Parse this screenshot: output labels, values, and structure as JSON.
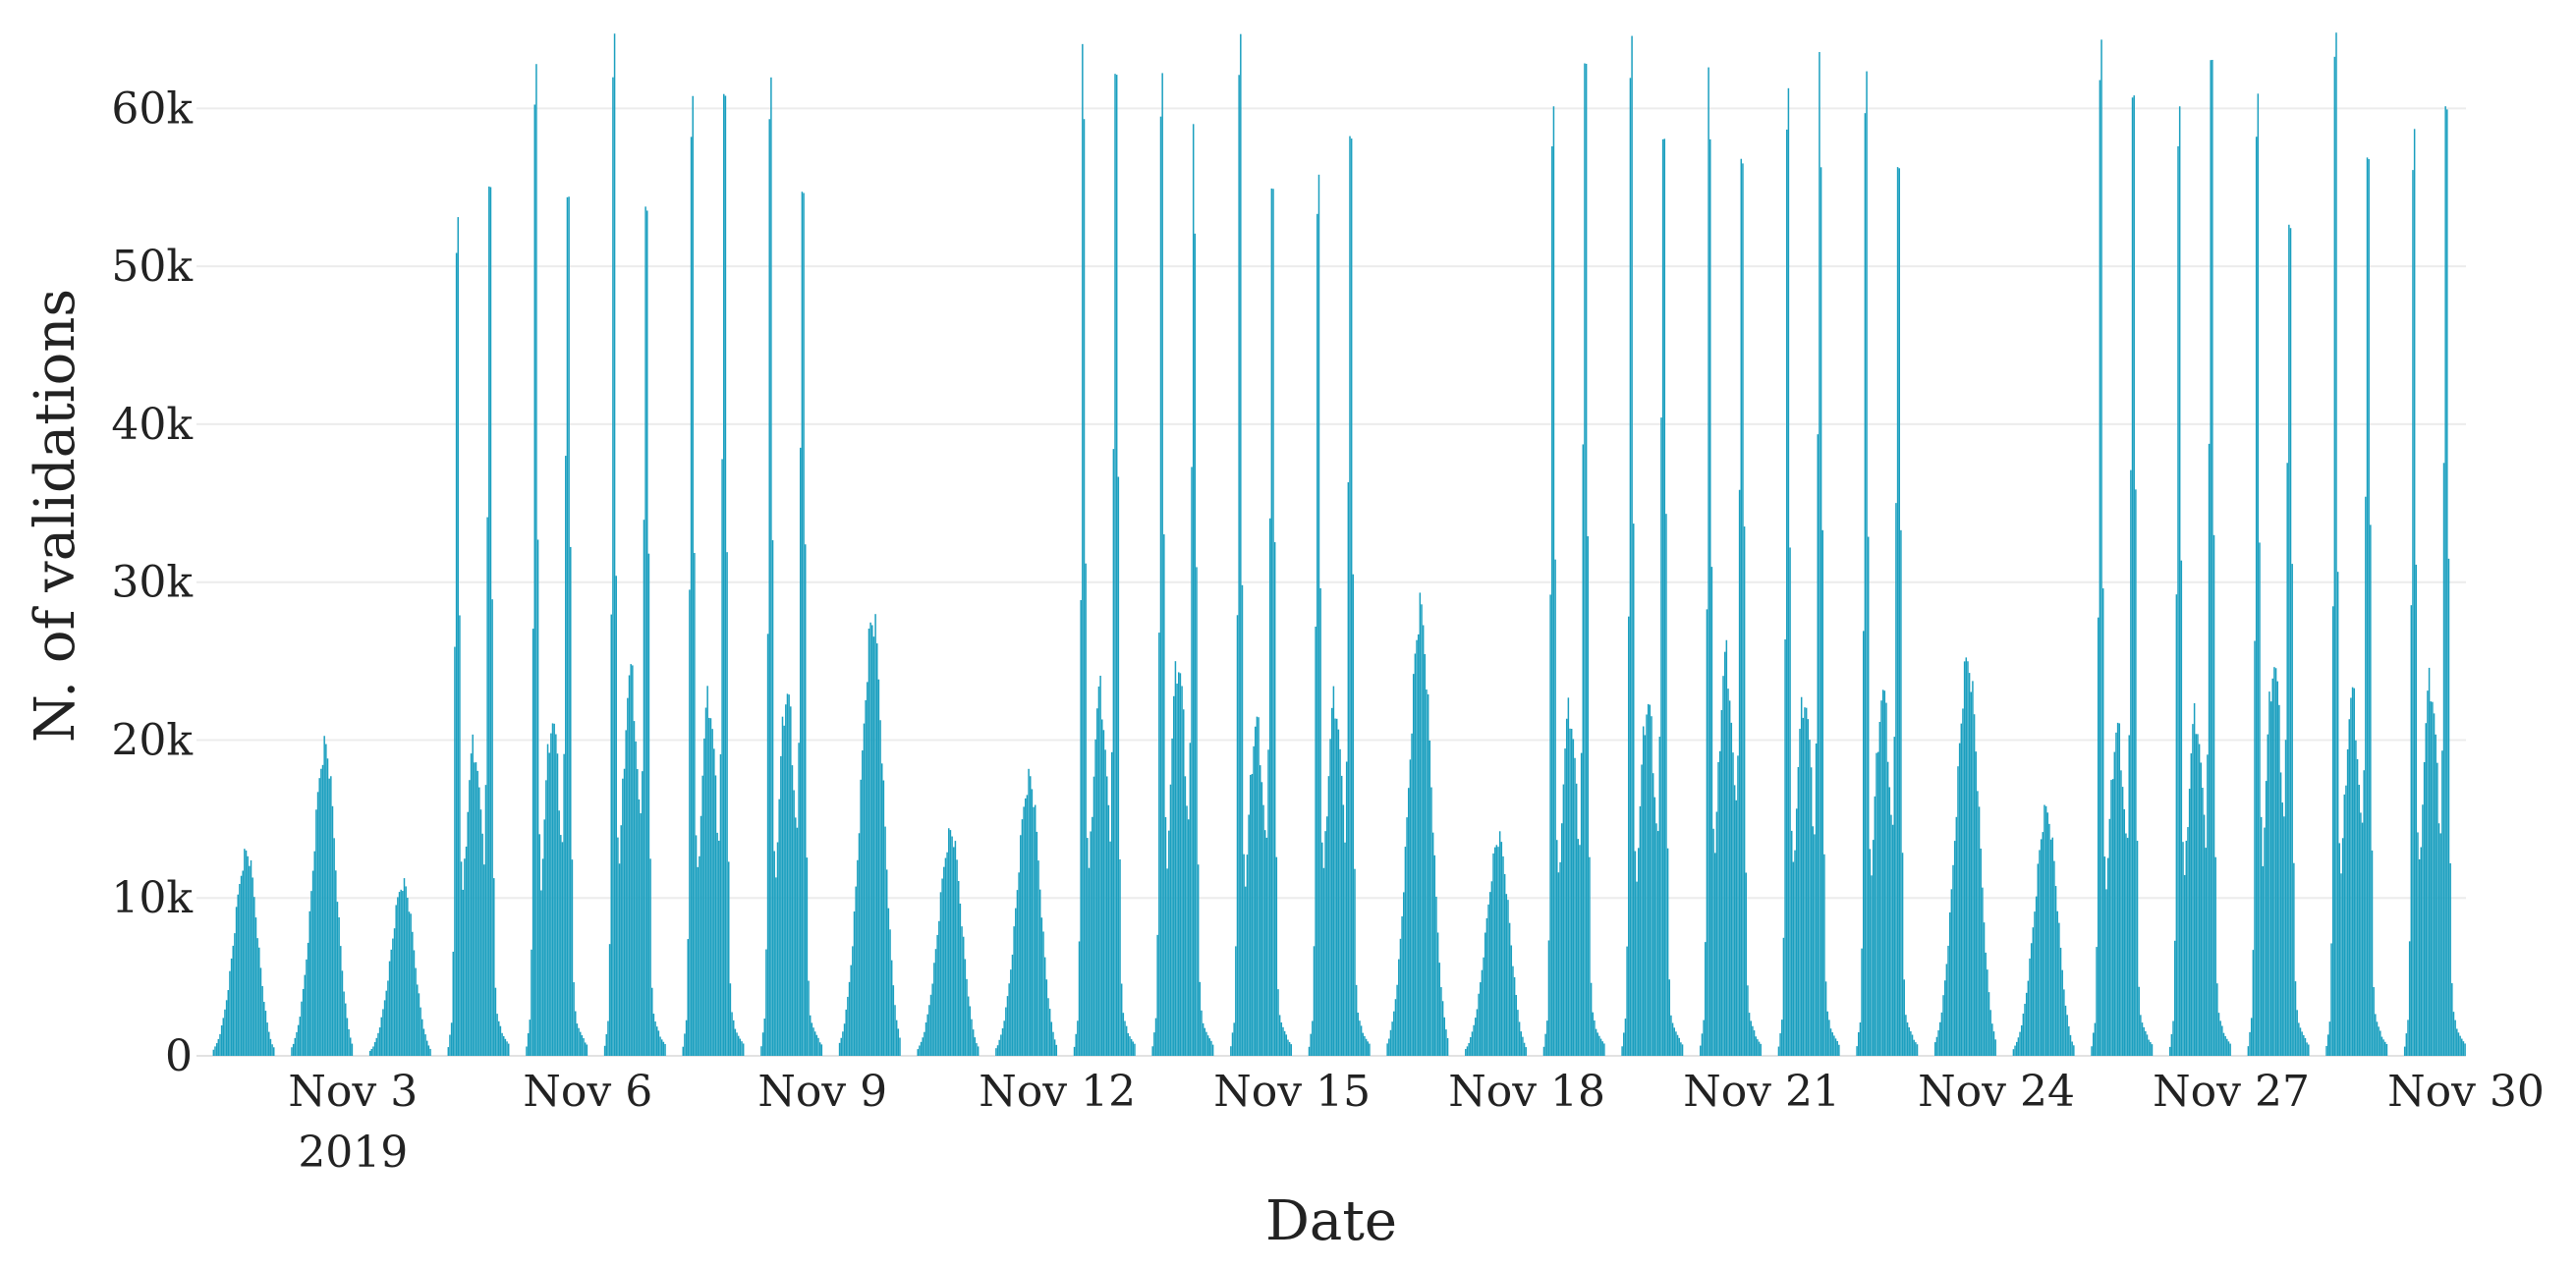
{
  "chart_data": {
    "type": "bar",
    "x_kind": "date",
    "x_range": [
      "2019-11-01",
      "2019-11-30"
    ],
    "y_range": [
      0,
      65000
    ],
    "grid": true,
    "legend": "none",
    "xlabel": "Date",
    "ylabel": "N. of validations",
    "x_ticks": [
      {
        "date": "2019-11-03",
        "label": "Nov 3",
        "sublabel": "2019"
      },
      {
        "date": "2019-11-06",
        "label": "Nov 6"
      },
      {
        "date": "2019-11-09",
        "label": "Nov 9"
      },
      {
        "date": "2019-11-12",
        "label": "Nov 12"
      },
      {
        "date": "2019-11-15",
        "label": "Nov 15"
      },
      {
        "date": "2019-11-18",
        "label": "Nov 18"
      },
      {
        "date": "2019-11-21",
        "label": "Nov 21"
      },
      {
        "date": "2019-11-24",
        "label": "Nov 24"
      },
      {
        "date": "2019-11-27",
        "label": "Nov 27"
      },
      {
        "date": "2019-11-30",
        "label": "Nov 30"
      }
    ],
    "y_ticks": [
      {
        "value": 0,
        "label": "0"
      },
      {
        "value": 10000,
        "label": "10k"
      },
      {
        "value": 20000,
        "label": "20k"
      },
      {
        "value": 30000,
        "label": "30k"
      },
      {
        "value": 40000,
        "label": "40k"
      },
      {
        "value": 50000,
        "label": "50k"
      },
      {
        "value": 60000,
        "label": "60k"
      }
    ],
    "series": [
      {
        "color": "#1a9fbf",
        "daily": [
          {
            "date": "2019-11-01",
            "pattern": "weekend",
            "peak": 12000,
            "am": 10500
          },
          {
            "date": "2019-11-02",
            "pattern": "weekend",
            "peak": 18500,
            "am": 14000
          },
          {
            "date": "2019-11-03",
            "pattern": "weekend",
            "peak": 10300,
            "am": 8000
          },
          {
            "date": "2019-11-04",
            "pattern": "weekday",
            "am": 55700,
            "mid": 28000,
            "pm": 54000
          },
          {
            "date": "2019-11-05",
            "pattern": "weekday",
            "am": 63400,
            "mid": 31000,
            "pm": 57800
          },
          {
            "date": "2019-11-06",
            "pattern": "weekday",
            "am": 62000,
            "mid": 36000,
            "pm": 53600
          },
          {
            "date": "2019-11-07",
            "pattern": "weekday",
            "am": 63200,
            "mid": 33000,
            "pm": 59200
          },
          {
            "date": "2019-11-08",
            "pattern": "weekday",
            "am": 61400,
            "mid": 34000,
            "pm": 57100
          },
          {
            "date": "2019-11-09",
            "pattern": "weekend",
            "peak": 26000,
            "am": 20000
          },
          {
            "date": "2019-11-10",
            "pattern": "weekend",
            "peak": 13200,
            "am": 11500
          },
          {
            "date": "2019-11-11",
            "pattern": "weekend",
            "peak": 16600,
            "am": 12500
          },
          {
            "date": "2019-11-12",
            "pattern": "weekday",
            "am": 63000,
            "mid": 33800,
            "pm": 62000
          },
          {
            "date": "2019-11-13",
            "pattern": "weekday",
            "am": 62800,
            "mid": 37500,
            "pm": 55200
          },
          {
            "date": "2019-11-14",
            "pattern": "weekday",
            "am": 63300,
            "mid": 30500,
            "pm": 56300
          },
          {
            "date": "2019-11-15",
            "pattern": "weekday",
            "am": 58200,
            "mid": 33400,
            "pm": 56900
          },
          {
            "date": "2019-11-16",
            "pattern": "weekend",
            "peak": 26500,
            "am": 20000
          },
          {
            "date": "2019-11-17",
            "pattern": "weekend",
            "peak": 12800,
            "am": 11000
          },
          {
            "date": "2019-11-18",
            "pattern": "weekday",
            "am": 62600,
            "mid": 31700,
            "pm": 61500
          },
          {
            "date": "2019-11-19",
            "pattern": "weekday",
            "am": 64400,
            "mid": 32800,
            "pm": 61200
          },
          {
            "date": "2019-11-20",
            "pattern": "weekday",
            "am": 61800,
            "mid": 38200,
            "pm": 56100
          },
          {
            "date": "2019-11-21",
            "pattern": "weekday",
            "am": 62900,
            "mid": 33800,
            "pm": 61300
          },
          {
            "date": "2019-11-22",
            "pattern": "weekday",
            "am": 61100,
            "mid": 34000,
            "pm": 58200
          },
          {
            "date": "2019-11-23",
            "pattern": "weekend",
            "peak": 23200,
            "am": 21500
          },
          {
            "date": "2019-11-24",
            "pattern": "weekend",
            "peak": 14600,
            "am": 11000
          },
          {
            "date": "2019-11-25",
            "pattern": "weekday",
            "am": 63000,
            "mid": 29800,
            "pm": 63100
          },
          {
            "date": "2019-11-26",
            "pattern": "weekday",
            "am": 63400,
            "mid": 31500,
            "pm": 62500
          },
          {
            "date": "2019-11-27",
            "pattern": "weekday",
            "am": 60600,
            "mid": 37600,
            "pm": 54900
          },
          {
            "date": "2019-11-28",
            "pattern": "weekday",
            "am": 63600,
            "mid": 33400,
            "pm": 57500
          },
          {
            "date": "2019-11-29",
            "pattern": "weekday",
            "am": 60600,
            "mid": 35000,
            "pm": 58100
          }
        ]
      }
    ]
  }
}
